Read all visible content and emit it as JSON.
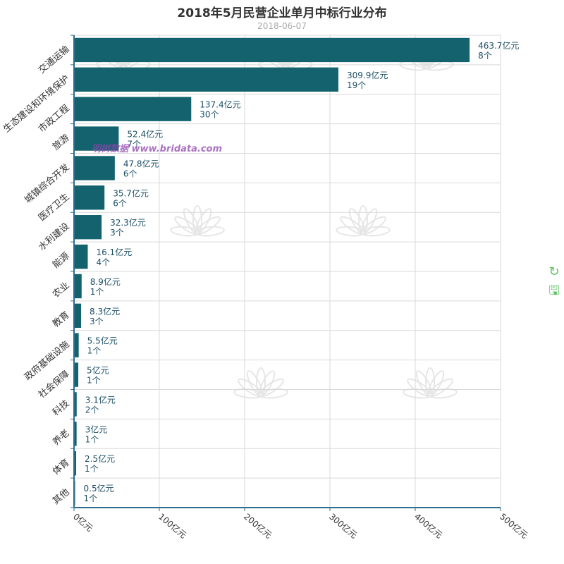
{
  "chart_data": {
    "type": "bar",
    "orientation": "horizontal",
    "title": "2018年5月民营企业单月中标行业分布",
    "subtitle": "2018-06-07",
    "categories": [
      "交通运输",
      "生态建设和环境保护",
      "市政工程",
      "旅游",
      "城镇综合开发",
      "医疗卫生",
      "水利建设",
      "能源",
      "农业",
      "教育",
      "政府基础设施",
      "社会保障",
      "科技",
      "养老",
      "体育",
      "其他"
    ],
    "series": [
      {
        "values": [
          463.7,
          309.9,
          137.4,
          52.4,
          47.8,
          35.7,
          32.3,
          16.1,
          8.9,
          8.3,
          5.5,
          5,
          3.1,
          3,
          2.5,
          0.5
        ],
        "counts": [
          8,
          19,
          30,
          7,
          6,
          6,
          3,
          4,
          1,
          3,
          1,
          1,
          2,
          1,
          1,
          1
        ]
      }
    ],
    "value_labels": [
      "463.7亿元",
      "309.9亿元",
      "137.4亿元",
      "52.4亿元",
      "47.8亿元",
      "35.7亿元",
      "32.3亿元",
      "16.1亿元",
      "8.9亿元",
      "8.3亿元",
      "5.5亿元",
      "5亿元",
      "3.1亿元",
      "3亿元",
      "2.5亿元",
      "0.5亿元"
    ],
    "count_labels": [
      "8个",
      "19个",
      "30个",
      "7个",
      "6个",
      "6个",
      "3个",
      "4个",
      "1个",
      "3个",
      "1个",
      "1个",
      "2个",
      "1个",
      "1个",
      "1个"
    ],
    "x_ticks": [
      0,
      100,
      200,
      300,
      400,
      500
    ],
    "x_tick_labels": [
      "0亿元",
      "100亿元",
      "200亿元",
      "300亿元",
      "400亿元",
      "500亿元"
    ],
    "xlim": [
      0,
      500
    ],
    "xlabel": "",
    "ylabel": "",
    "grid": true,
    "bar_color": "#13626e"
  },
  "watermark": {
    "text": "明树数据 www.bridata.com"
  },
  "toolbox": {
    "restore_icon": "refresh-icon",
    "save_icon": "save-icon",
    "color": "#5bbf62"
  }
}
